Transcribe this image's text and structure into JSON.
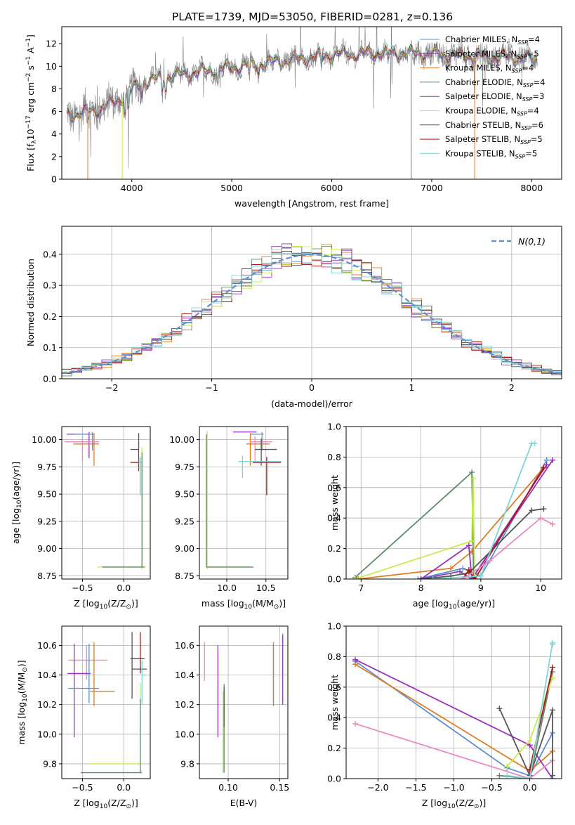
{
  "figure": {
    "title": "PLATE=1739, MJD=53050, FIBERID=0281, z=0.136"
  },
  "models": [
    {
      "label": "Chabrier MILES, N",
      "sub": "SSP",
      "tail": "=4",
      "color": "#5b8fd6"
    },
    {
      "label": "Salpeter MILES, N",
      "sub": "SSP",
      "tail": "=5",
      "color": "#8e44ad"
    },
    {
      "label": "Kroupa MILES, N",
      "sub": "SSP",
      "tail": "=4",
      "color": "#e07b22"
    },
    {
      "label": "Chabrier ELODIE, N",
      "sub": "SSP",
      "tail": "=4",
      "color": "#5e8a6b"
    },
    {
      "label": "Salpeter ELODIE, N",
      "sub": "SSP",
      "tail": "=3",
      "color": "#9b30c0"
    },
    {
      "label": "Kroupa ELODIE, N",
      "sub": "SSP",
      "tail": "=4",
      "color": "#c8ec4c"
    },
    {
      "label": "Chabrier STELIB, N",
      "sub": "SSP",
      "tail": "=6",
      "color": "#555555"
    },
    {
      "label": "Salpeter STELIB, N",
      "sub": "SSP",
      "tail": "=5",
      "color": "#b01515"
    },
    {
      "label": "Kroupa STELIB, N",
      "sub": "SSP",
      "tail": "=5",
      "color": "#7fd4d4"
    }
  ],
  "pink_color": "#e98ac0",
  "chart_data": [
    {
      "id": "spectrum",
      "type": "line",
      "xlabel": "wavelength [Angstrom, rest frame]",
      "ylabel_parts": [
        "Flux [f",
        "λ",
        "10",
        "−17",
        " erg cm",
        "−2",
        " s",
        "−1",
        " A",
        "−1",
        "]"
      ],
      "xlim": [
        3300,
        8300
      ],
      "ylim": [
        0,
        13.5
      ],
      "xticks": [
        4000,
        5000,
        6000,
        7000,
        8000
      ],
      "yticks": [
        0,
        2,
        4,
        6,
        8,
        10,
        12
      ],
      "continuum_x": [
        3350,
        3500,
        3700,
        3900,
        4100,
        4300,
        4600,
        5000,
        5500,
        6000,
        6500,
        7000,
        7500,
        8000,
        8060
      ],
      "continuum_y": [
        5.7,
        5.9,
        6.3,
        7.2,
        8.6,
        9.0,
        9.4,
        9.9,
        10.5,
        11.0,
        11.2,
        11.1,
        10.9,
        10.7,
        10.6
      ],
      "grid": false,
      "legend": "upper-right"
    },
    {
      "id": "residuals",
      "type": "histogram",
      "xlabel": "(data-model)/error",
      "ylabel": "Normed distribution",
      "xlim": [
        -2.5,
        2.5
      ],
      "ylim": [
        0,
        0.49
      ],
      "xticks": [
        -2,
        -1,
        0,
        1,
        2
      ],
      "yticks": [
        0,
        0.1,
        0.2,
        0.3,
        0.4
      ],
      "bin_width": 0.1,
      "reference_label": "N(0,1)",
      "reference_color": "#5b8fd6",
      "grid": true,
      "legend": "upper-right"
    },
    {
      "id": "age-vs-z",
      "type": "errorbar",
      "xlabel_parts": [
        "Z [log",
        "10",
        "(Z/Z",
        "⊙",
        ")]"
      ],
      "ylabel_parts": [
        "age  [log",
        "10",
        "(age/yr)]"
      ],
      "xlim": [
        -0.75,
        0.32
      ],
      "ylim": [
        8.72,
        10.12
      ],
      "xticks": [
        -0.5,
        0.0
      ],
      "yticks": [
        8.75,
        9.0,
        9.25,
        9.5,
        9.75,
        10.0
      ],
      "points": [
        {
          "m": 4,
          "x": -0.42,
          "y": 10.05,
          "xe": [
            0.27,
            0.0
          ],
          "ye": [
            0.22,
            0.02
          ]
        },
        {
          "m": 0,
          "x": -0.38,
          "y": 10.05,
          "xe": [
            0.22,
            0.02
          ],
          "ye": [
            0.15,
            0.02
          ]
        },
        {
          "m": 2,
          "x": -0.36,
          "y": 9.96,
          "xe": [
            0.25,
            0.06
          ],
          "ye": [
            0.2,
            0.1
          ]
        },
        {
          "m": 9,
          "x": -0.5,
          "y": 9.98,
          "xe": [
            0.22,
            0.2
          ],
          "ye": [
            0.18,
            0.05
          ]
        },
        {
          "m": 6,
          "x": 0.18,
          "y": 9.91,
          "xe": [
            0.1,
            0.0
          ],
          "ye": [
            0.2,
            0.15
          ]
        },
        {
          "m": 7,
          "x": 0.2,
          "y": 9.79,
          "xe": [
            0.12,
            0.02
          ],
          "ye": [
            0.3,
            0.05
          ]
        },
        {
          "m": 8,
          "x": 0.2,
          "y": 9.79,
          "xe": [
            0.02,
            0.02
          ],
          "ye": [
            0.3,
            0.05
          ]
        },
        {
          "m": 5,
          "x": 0.22,
          "y": 8.83,
          "xe": [
            0.54,
            0.04
          ],
          "ye": [
            0.02,
            1.1
          ]
        },
        {
          "m": 3,
          "x": 0.22,
          "y": 8.83,
          "xe": [
            0.48,
            0.03
          ],
          "ye": [
            0.0,
            1.05
          ]
        }
      ],
      "grid": true
    },
    {
      "id": "age-vs-mass",
      "type": "errorbar",
      "xlabel_parts": [
        "mass [log",
        "10",
        "(M/M",
        "⊙",
        ")]"
      ],
      "ylabel": "",
      "xlim": [
        9.65,
        10.78
      ],
      "ylim": [
        8.72,
        10.12
      ],
      "xticks": [
        10.0,
        10.5
      ],
      "yticks": [
        8.75,
        9.0,
        9.25,
        9.5,
        9.75,
        10.0
      ],
      "points": [
        {
          "m": 4,
          "x": 10.08,
          "y": 10.07,
          "xe": [
            0.0,
            0.3
          ],
          "ye": [
            0.0,
            0.0
          ]
        },
        {
          "m": 0,
          "x": 10.45,
          "y": 10.05,
          "xe": [
            0.15,
            0.02
          ],
          "ye": [
            0.15,
            0.02
          ]
        },
        {
          "m": 2,
          "x": 10.3,
          "y": 9.96,
          "xe": [
            0.05,
            0.25
          ],
          "ye": [
            0.2,
            0.1
          ]
        },
        {
          "m": 9,
          "x": 10.36,
          "y": 9.98,
          "xe": [
            0.06,
            0.22
          ],
          "ye": [
            0.18,
            0.05
          ]
        },
        {
          "m": 6,
          "x": 10.44,
          "y": 9.91,
          "xe": [
            0.08,
            0.2
          ],
          "ye": [
            0.15,
            0.1
          ]
        },
        {
          "m": 7,
          "x": 10.51,
          "y": 9.79,
          "xe": [
            0.18,
            0.18
          ],
          "ye": [
            0.3,
            0.05
          ]
        },
        {
          "m": 8,
          "x": 10.2,
          "y": 9.8,
          "xe": [
            0.05,
            0.5
          ],
          "ye": [
            0.15,
            0.05
          ]
        },
        {
          "m": 5,
          "x": 9.75,
          "y": 8.83,
          "xe": [
            0.02,
            0.55
          ],
          "ye": [
            0.02,
            1.25
          ]
        },
        {
          "m": 3,
          "x": 9.74,
          "y": 8.83,
          "xe": [
            0.0,
            0.6
          ],
          "ye": [
            0.0,
            1.22
          ]
        }
      ],
      "grid": true
    },
    {
      "id": "weight-vs-age",
      "type": "line",
      "xlabel_parts": [
        "age  [log",
        "10",
        "(age/yr)]"
      ],
      "ylabel": "mass weight",
      "xlim": [
        6.75,
        10.35
      ],
      "ylim": [
        0,
        1
      ],
      "xticks": [
        7,
        8,
        9,
        10
      ],
      "yticks": [
        0.0,
        0.2,
        0.4,
        0.6,
        0.8,
        1.0
      ],
      "series": [
        {
          "m": 0,
          "x": [
            7.95,
            8.7,
            9.0,
            10.1
          ],
          "y": [
            0.0,
            0.07,
            0.02,
            0.78
          ]
        },
        {
          "m": 1,
          "x": [
            8.0,
            8.65,
            8.85,
            10.1
          ],
          "y": [
            0.0,
            0.05,
            0.0,
            0.75
          ]
        },
        {
          "m": 2,
          "x": [
            6.95,
            8.5,
            8.85,
            10.05
          ],
          "y": [
            0.0,
            0.07,
            0.18,
            0.73
          ]
        },
        {
          "m": 3,
          "x": [
            6.9,
            8.85,
            8.88,
            8.9
          ],
          "y": [
            0.01,
            0.7,
            0.0,
            0.0
          ]
        },
        {
          "m": 4,
          "x": [
            8.0,
            8.8,
            8.85,
            10.2
          ],
          "y": [
            0.0,
            0.22,
            0.0,
            0.78
          ]
        },
        {
          "m": 5,
          "x": [
            6.9,
            8.85,
            8.87,
            8.9
          ],
          "y": [
            0.0,
            0.25,
            0.66,
            0.0
          ]
        },
        {
          "m": 6,
          "x": [
            8.0,
            8.5,
            8.8,
            9.85,
            10.05
          ],
          "y": [
            0.0,
            0.02,
            0.04,
            0.45,
            0.46
          ]
        },
        {
          "m": 7,
          "x": [
            8.7,
            8.8,
            8.9,
            10.05
          ],
          "y": [
            0.0,
            0.06,
            0.0,
            0.73
          ]
        },
        {
          "m": 8,
          "x": [
            8.2,
            9.0,
            9.85,
            9.9
          ],
          "y": [
            0.0,
            0.02,
            0.89,
            0.89
          ]
        },
        {
          "m": 9,
          "x": [
            8.7,
            9.15,
            10.0,
            10.2
          ],
          "y": [
            0.0,
            0.12,
            0.4,
            0.36
          ]
        }
      ],
      "grid": true
    },
    {
      "id": "mass-vs-z",
      "type": "errorbar",
      "xlabel_parts": [
        "Z [log",
        "10",
        "(Z/Z",
        "⊙",
        ")]"
      ],
      "ylabel_parts": [
        "mass [log",
        "10",
        "(M/M",
        "⊙",
        ")]"
      ],
      "xlim": [
        -0.75,
        0.32
      ],
      "ylim": [
        9.7,
        10.73
      ],
      "xticks": [
        -0.5,
        0.0
      ],
      "yticks": [
        9.8,
        10.0,
        10.2,
        10.4,
        10.6
      ],
      "points": [
        {
          "m": 9,
          "x": -0.45,
          "y": 10.5,
          "xe": [
            0.22,
            0.25
          ],
          "ye": [
            0.13,
            0.1
          ]
        },
        {
          "m": 4,
          "x": -0.6,
          "y": 10.41,
          "xe": [
            0.08,
            0.2
          ],
          "ye": [
            0.43,
            0.2
          ]
        },
        {
          "m": 0,
          "x": -0.42,
          "y": 10.31,
          "xe": [
            0.25,
            0.12
          ],
          "ye": [
            0.1,
            0.3
          ]
        },
        {
          "m": 2,
          "x": -0.36,
          "y": 10.29,
          "xe": [
            0.05,
            0.25
          ],
          "ye": [
            0.1,
            0.33
          ]
        },
        {
          "m": 6,
          "x": 0.1,
          "y": 10.44,
          "xe": [
            0.0,
            0.18
          ],
          "ye": [
            0.2,
            0.25
          ]
        },
        {
          "m": 7,
          "x": 0.2,
          "y": 10.51,
          "xe": [
            0.12,
            0.05
          ],
          "ye": [
            0.1,
            0.18
          ]
        },
        {
          "m": 8,
          "x": 0.22,
          "y": 10.4,
          "xe": [
            0.0,
            0.05
          ],
          "ye": [
            0.2,
            0.1
          ]
        },
        {
          "m": 5,
          "x": 0.2,
          "y": 9.8,
          "xe": [
            0.62,
            0.02
          ],
          "ye": [
            0.05,
            0.55
          ]
        },
        {
          "m": 3,
          "x": 0.2,
          "y": 9.74,
          "xe": [
            0.72,
            0.02
          ],
          "ye": [
            0.0,
            0.5
          ]
        }
      ],
      "grid": true
    },
    {
      "id": "mass-vs-ebv",
      "type": "errorbar",
      "xlabel": "E(B-V)",
      "ylabel": "",
      "xlim": [
        0.072,
        0.158
      ],
      "ylim": [
        9.7,
        10.73
      ],
      "xticks": [
        0.1,
        0.15
      ],
      "yticks": [
        9.8,
        10.0,
        10.2,
        10.4,
        10.6
      ],
      "points": [
        {
          "m": 9,
          "x": 0.077,
          "y": 10.5,
          "xe": [
            0.0,
            0.0
          ],
          "ye": [
            0.14,
            0.12
          ]
        },
        {
          "m": 4,
          "x": 0.09,
          "y": 10.41,
          "xe": [
            0.0,
            0.0
          ],
          "ye": [
            0.43,
            0.19
          ]
        },
        {
          "m": 0,
          "x": 0.144,
          "y": 10.31,
          "xe": [
            0.0,
            0.0
          ],
          "ye": [
            0.1,
            0.3
          ]
        },
        {
          "m": 2,
          "x": 0.144,
          "y": 10.29,
          "xe": [
            0.0,
            0.0
          ],
          "ye": [
            0.1,
            0.33
          ]
        },
        {
          "m": 3,
          "x": 0.096,
          "y": 10.0,
          "xe": [
            0.0,
            0.0
          ],
          "ye": [
            0.26,
            0.34
          ]
        },
        {
          "m": 6,
          "x": 0.096,
          "y": 10.1,
          "xe": [
            0.0,
            0.0
          ],
          "ye": [
            0.05,
            0.22
          ]
        },
        {
          "m": 5,
          "x": 0.095,
          "y": 9.74,
          "xe": [
            0.0,
            0.0
          ],
          "ye": [
            0.0,
            0.55
          ]
        },
        {
          "m": 7,
          "x": 0.153,
          "y": 10.5,
          "xe": [
            0.0,
            0.0
          ],
          "ye": [
            0.1,
            0.18
          ]
        },
        {
          "m": 8,
          "x": 0.153,
          "y": 10.4,
          "xe": [
            0.0,
            0.0
          ],
          "ye": [
            0.2,
            0.28
          ]
        },
        {
          "m": 1,
          "x": 0.153,
          "y": 10.45,
          "xe": [
            0.0,
            0.0
          ],
          "ye": [
            0.25,
            0.22
          ]
        }
      ],
      "grid": true
    },
    {
      "id": "weight-vs-z",
      "type": "line",
      "xlabel_parts": [
        "Z [log",
        "10",
        "(Z/Z",
        "⊙",
        ")]"
      ],
      "ylabel": "mass weight",
      "xlim": [
        -2.42,
        0.42
      ],
      "ylim": [
        0,
        1
      ],
      "xticks": [
        -2.0,
        -1.5,
        -1.0,
        -0.5,
        0.0
      ],
      "yticks": [
        0.0,
        0.2,
        0.4,
        0.6,
        0.8,
        1.0
      ],
      "series": [
        {
          "m": 0,
          "x": [
            -2.3,
            -0.3,
            0.0,
            0.3
          ],
          "y": [
            0.77,
            0.07,
            0.02,
            0.3
          ]
        },
        {
          "m": 2,
          "x": [
            -2.3,
            0.0,
            0.3
          ],
          "y": [
            0.75,
            0.05,
            0.18
          ]
        },
        {
          "m": 4,
          "x": [
            -2.3,
            0.0,
            0.3
          ],
          "y": [
            0.78,
            0.22,
            0.0
          ]
        },
        {
          "m": 9,
          "x": [
            -2.3,
            0.0,
            0.3
          ],
          "y": [
            0.36,
            0.0,
            0.12
          ]
        },
        {
          "m": 6,
          "x": [
            -0.4,
            0.0,
            0.3,
            0.3
          ],
          "y": [
            0.46,
            0.02,
            0.45,
            0.02
          ]
        },
        {
          "m": 3,
          "x": [
            -0.4,
            0.0,
            0.3
          ],
          "y": [
            0.02,
            0.0,
            0.7
          ]
        },
        {
          "m": 5,
          "x": [
            -0.3,
            0.0,
            0.3
          ],
          "y": [
            0.08,
            0.25,
            0.66
          ]
        },
        {
          "m": 7,
          "x": [
            0.0,
            0.3
          ],
          "y": [
            0.06,
            0.73
          ]
        },
        {
          "m": 8,
          "x": [
            -0.3,
            0.0,
            0.3,
            0.3
          ],
          "y": [
            0.02,
            0.0,
            0.89,
            0.88
          ]
        }
      ],
      "grid": true
    }
  ]
}
